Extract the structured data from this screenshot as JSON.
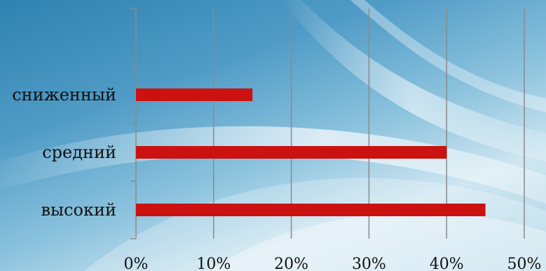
{
  "chart_data": {
    "type": "bar",
    "orientation": "horizontal",
    "categories": [
      "сниженный",
      "средний",
      "высокий"
    ],
    "values": [
      15,
      40,
      45
    ],
    "value_unit": "%",
    "xlim": [
      0,
      50
    ],
    "xticks": [
      "0%",
      "10%",
      "20%",
      "30%",
      "40%",
      "50%"
    ],
    "grid": "vertical",
    "legend": "none",
    "bar_color": "#cc1111",
    "gridline_color": "#8a8a8a"
  }
}
